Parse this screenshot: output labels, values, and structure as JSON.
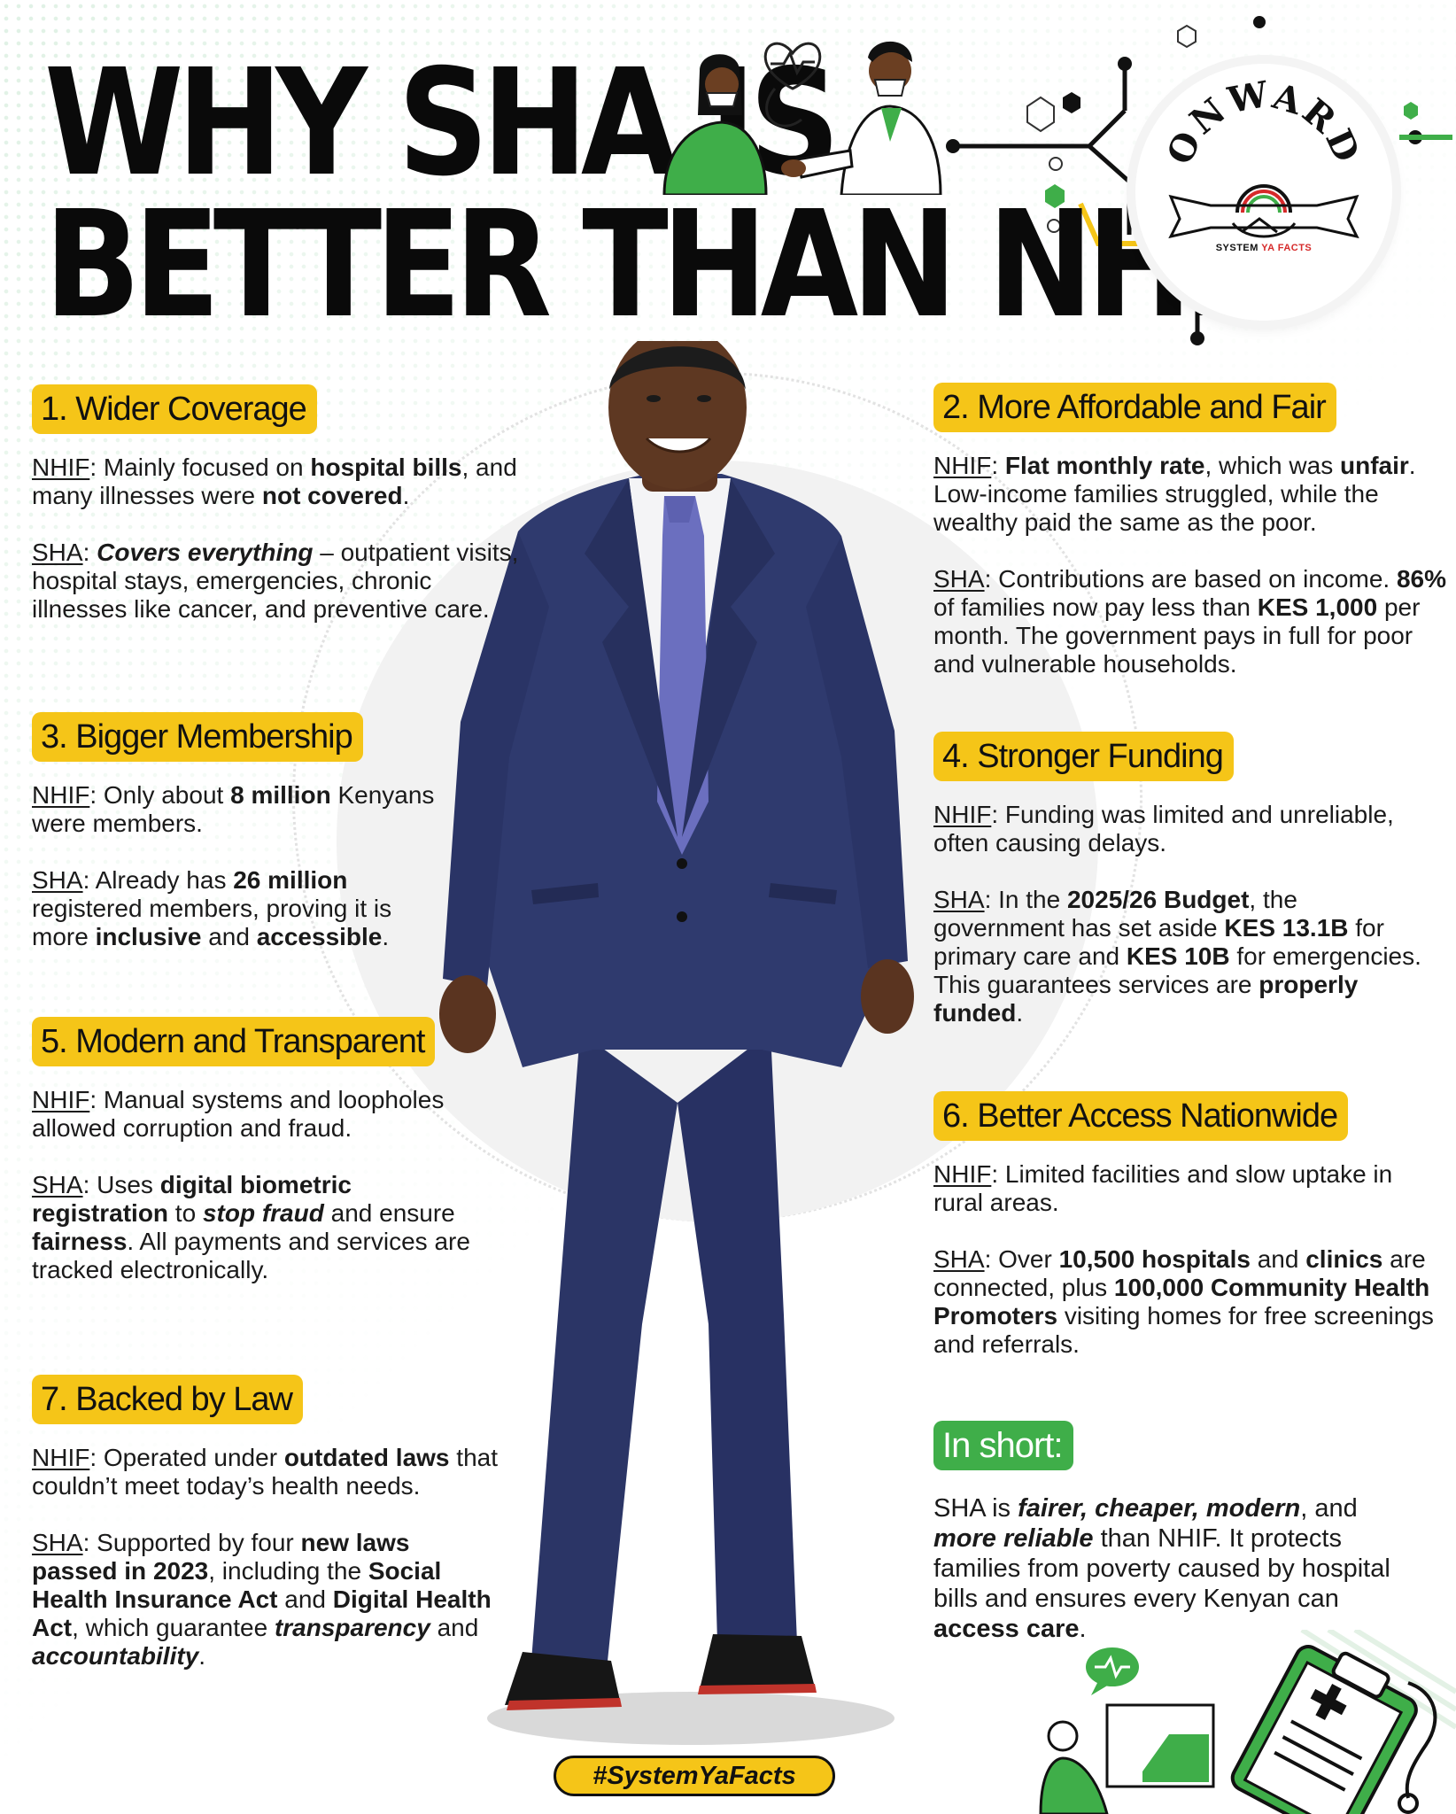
{
  "headline": {
    "line1": "WHY SHA IS",
    "line2": "BETTER THAN NHIF"
  },
  "logo": {
    "word": "ONWARD",
    "tag_a": "SYSTEM",
    "tag_b": "YA FACTS"
  },
  "sections": [
    {
      "title": "1. Wider Coverage",
      "nhif": {
        "label": "NHIF",
        "parts": [
          ": Mainly focused on ",
          "hospital bills",
          ", and many illnesses were ",
          "not covered",
          "."
        ]
      },
      "sha": {
        "label": "SHA",
        "parts": [
          ": ",
          "Covers everything",
          " – outpatient visits, hospital stays, emergencies, chronic illnesses like cancer, and preventive care."
        ]
      }
    },
    {
      "title": "2. More Affordable and Fair",
      "nhif": {
        "label": "NHIF",
        "parts": [
          ": ",
          "Flat monthly rate",
          ", which was ",
          "unfair",
          ". Low-income families struggled, while the wealthy paid the same as the poor."
        ]
      },
      "sha": {
        "label": "SHA",
        "parts": [
          ": Contributions are based on income. ",
          "86%",
          " of families now pay less than ",
          "KES 1,000",
          " per month. The government pays in full for poor and vulnerable households."
        ]
      }
    },
    {
      "title": "3. Bigger Membership",
      "nhif": {
        "label": "NHIF",
        "parts": [
          ": Only about ",
          "8 million",
          " Kenyans were members."
        ]
      },
      "sha": {
        "label": "SHA",
        "parts": [
          ": Already has ",
          "26 million",
          " registered members, proving it is more ",
          "inclusive",
          " and ",
          "accessible",
          "."
        ]
      }
    },
    {
      "title": "4. Stronger Funding",
      "nhif": {
        "label": "NHIF",
        "parts": [
          ": Funding was limited and unreliable, often causing delays."
        ]
      },
      "sha": {
        "label": "SHA",
        "parts": [
          ": In the ",
          "2025/26 Budget",
          ", the government has set aside ",
          "KES 13.1B",
          " for primary care and ",
          "KES 10B",
          " for emergencies. This guarantees services are ",
          "properly funded",
          "."
        ]
      }
    },
    {
      "title": "5. Modern and Transparent",
      "nhif": {
        "label": "NHIF",
        "parts": [
          ": Manual systems and loopholes allowed corruption and fraud."
        ]
      },
      "sha": {
        "label": "SHA",
        "parts": [
          ": Uses ",
          "digital biometric registration",
          " to ",
          "stop fraud",
          " and ensure ",
          "fairness",
          ". All payments and services are tracked electronically."
        ]
      }
    },
    {
      "title": "6. Better Access Nationwide",
      "nhif": {
        "label": "NHIF",
        "parts": [
          ": Limited facilities and slow uptake in rural areas."
        ]
      },
      "sha": {
        "label": "SHA",
        "parts": [
          ": Over ",
          "10,500 hospitals",
          " and ",
          "clinics",
          " are connected, plus ",
          "100,000 Community Health Promoters",
          " visiting homes for free screenings and referrals."
        ]
      }
    },
    {
      "title": "7. Backed by Law",
      "nhif": {
        "label": "NHIF",
        "parts": [
          ": Operated under ",
          "outdated laws",
          " that couldn’t meet today’s health needs."
        ]
      },
      "sha": {
        "label": "SHA",
        "parts": [
          ": Supported by four ",
          "new laws passed in 2023",
          ", including the ",
          "Social Health Insurance Act",
          " and ",
          "Digital Health Act",
          ", which guarantee ",
          "transparency",
          " and ",
          "accountability",
          "."
        ]
      }
    }
  ],
  "summary": {
    "title": "In short:",
    "parts": [
      "SHA is ",
      "fairer, cheaper, modern",
      ", and ",
      "more reliable",
      " than NHIF. It protects families from poverty caused by hospital bills and ensures every Kenyan can ",
      "access care",
      "."
    ]
  },
  "hashtag": "#SystemYaFacts",
  "colors": {
    "accent_yellow": "#f5c518",
    "accent_green": "#3fae49",
    "text": "#111111"
  }
}
